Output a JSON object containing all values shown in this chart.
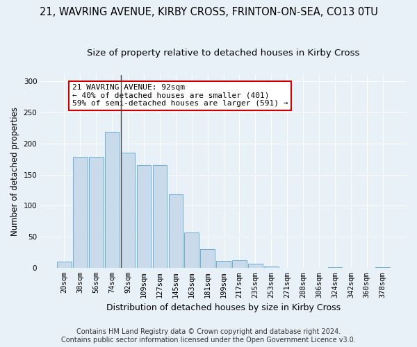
{
  "title": "21, WAVRING AVENUE, KIRBY CROSS, FRINTON-ON-SEA, CO13 0TU",
  "subtitle": "Size of property relative to detached houses in Kirby Cross",
  "xlabel": "Distribution of detached houses by size in Kirby Cross",
  "ylabel": "Number of detached properties",
  "categories": [
    "20sqm",
    "38sqm",
    "56sqm",
    "74sqm",
    "92sqm",
    "109sqm",
    "127sqm",
    "145sqm",
    "163sqm",
    "181sqm",
    "199sqm",
    "217sqm",
    "235sqm",
    "253sqm",
    "271sqm",
    "288sqm",
    "306sqm",
    "324sqm",
    "342sqm",
    "360sqm",
    "378sqm"
  ],
  "values": [
    10,
    178,
    178,
    218,
    185,
    165,
    165,
    118,
    57,
    30,
    12,
    13,
    7,
    3,
    0,
    0,
    0,
    1,
    0,
    0,
    2
  ],
  "bar_color": "#c9daea",
  "bar_edge_color": "#6aaed6",
  "vline_color": "#444444",
  "annotation_text": "21 WAVRING AVENUE: 92sqm\n← 40% of detached houses are smaller (401)\n59% of semi-detached houses are larger (591) →",
  "annotation_box_color": "white",
  "annotation_box_edge_color": "#cc0000",
  "ylim": [
    0,
    310
  ],
  "yticks": [
    0,
    50,
    100,
    150,
    200,
    250,
    300
  ],
  "background_color": "#e8f0f8",
  "axes_background_color": "#e8f0f8",
  "grid_color": "white",
  "footer_text": "Contains HM Land Registry data © Crown copyright and database right 2024.\nContains public sector information licensed under the Open Government Licence v3.0.",
  "title_fontsize": 10.5,
  "subtitle_fontsize": 9.5,
  "xlabel_fontsize": 9,
  "ylabel_fontsize": 8.5,
  "tick_fontsize": 7.5,
  "annotation_fontsize": 8,
  "footer_fontsize": 7
}
